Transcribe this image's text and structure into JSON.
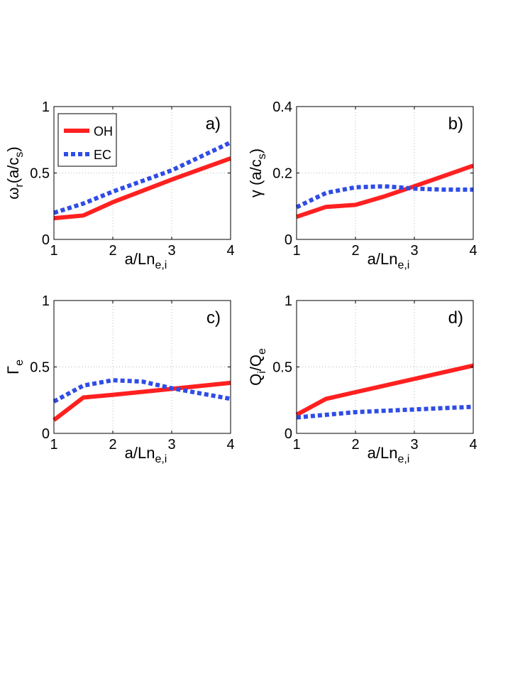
{
  "colors": {
    "OH": "#ff2020",
    "EC": "#2f4ce6"
  },
  "legend": {
    "entries": [
      "OH",
      "EC"
    ]
  },
  "chart_data": [
    {
      "type": "line",
      "panel_label": "a)",
      "xlabel_main": "a/Ln",
      "xlabel_sub": "e,i",
      "ylabel_main": "ω",
      "ylabel_sub1": "r",
      "ylabel_mid": "(a/c",
      "ylabel_sub2": "s",
      "ylabel_end": ")",
      "xlim": [
        1,
        4
      ],
      "ylim": [
        0,
        1
      ],
      "xticks": [
        1,
        2,
        3,
        4
      ],
      "xtick_labels": [
        "1",
        "2",
        "3",
        "4"
      ],
      "yticks": [
        0,
        0.5,
        1
      ],
      "ytick_labels": [
        "0",
        "0.5",
        "1"
      ],
      "grid": true,
      "legend": "top-left",
      "series": [
        {
          "name": "OH",
          "style": "solid",
          "x": [
            1,
            1.5,
            2,
            3,
            4
          ],
          "y": [
            0.16,
            0.18,
            0.28,
            0.45,
            0.61
          ]
        },
        {
          "name": "EC",
          "style": "dotted",
          "x": [
            1,
            1.5,
            2,
            3,
            4
          ],
          "y": [
            0.2,
            0.27,
            0.36,
            0.52,
            0.73
          ]
        }
      ]
    },
    {
      "type": "line",
      "panel_label": "b)",
      "xlabel_main": "a/Ln",
      "xlabel_sub": "e,i",
      "ylabel_main": "γ (a/c",
      "ylabel_sub1": "s",
      "ylabel_mid": ")",
      "ylabel_sub2": "",
      "ylabel_end": "",
      "xlim": [
        1,
        4
      ],
      "ylim": [
        0,
        0.4
      ],
      "xticks": [
        1,
        2,
        3,
        4
      ],
      "xtick_labels": [
        "1",
        "2",
        "3",
        "4"
      ],
      "yticks": [
        0,
        0.2,
        0.4
      ],
      "ytick_labels": [
        "0",
        "0.2",
        "0.4"
      ],
      "grid": true,
      "series": [
        {
          "name": "OH",
          "style": "solid",
          "x": [
            1,
            1.5,
            2,
            2.5,
            3,
            4
          ],
          "y": [
            0.068,
            0.098,
            0.104,
            0.13,
            0.16,
            0.222
          ]
        },
        {
          "name": "EC",
          "style": "dotted",
          "x": [
            1,
            1.5,
            2,
            2.5,
            3,
            3.5,
            4
          ],
          "y": [
            0.097,
            0.14,
            0.157,
            0.16,
            0.153,
            0.15,
            0.15
          ]
        }
      ]
    },
    {
      "type": "line",
      "panel_label": "c)",
      "xlabel_main": "a/Ln",
      "xlabel_sub": "e,i",
      "ylabel_main": "Γ",
      "ylabel_sub1": "e",
      "ylabel_mid": "",
      "ylabel_sub2": "",
      "ylabel_end": "",
      "xlim": [
        1,
        4
      ],
      "ylim": [
        0,
        1
      ],
      "xticks": [
        1,
        2,
        3,
        4
      ],
      "xtick_labels": [
        "1",
        "2",
        "3",
        "4"
      ],
      "yticks": [
        0,
        0.5,
        1
      ],
      "ytick_labels": [
        "0",
        "0.5",
        "1"
      ],
      "grid": true,
      "series": [
        {
          "name": "OH",
          "style": "solid",
          "x": [
            1,
            1.5,
            2,
            3,
            4
          ],
          "y": [
            0.1,
            0.27,
            0.29,
            0.335,
            0.38
          ]
        },
        {
          "name": "EC",
          "style": "dotted",
          "x": [
            1,
            1.5,
            2,
            2.5,
            3,
            3.5,
            4
          ],
          "y": [
            0.24,
            0.36,
            0.4,
            0.39,
            0.34,
            0.3,
            0.26
          ]
        }
      ]
    },
    {
      "type": "line",
      "panel_label": "d)",
      "xlabel_main": "a/Ln",
      "xlabel_sub": "e,i",
      "ylabel_main": "Q",
      "ylabel_sub1": "i",
      "ylabel_mid": "/Q",
      "ylabel_sub2": "e",
      "ylabel_end": "",
      "xlim": [
        1,
        4
      ],
      "ylim": [
        0,
        1
      ],
      "xticks": [
        1,
        2,
        3,
        4
      ],
      "xtick_labels": [
        "1",
        "2",
        "3",
        "4"
      ],
      "yticks": [
        0,
        0.5,
        1
      ],
      "ytick_labels": [
        "0",
        "0.5",
        "1"
      ],
      "grid": true,
      "series": [
        {
          "name": "OH",
          "style": "solid",
          "x": [
            1,
            1.5,
            2,
            3,
            4
          ],
          "y": [
            0.14,
            0.26,
            0.31,
            0.41,
            0.51
          ]
        },
        {
          "name": "EC",
          "style": "dotted",
          "x": [
            1,
            2,
            3,
            4
          ],
          "y": [
            0.12,
            0.16,
            0.18,
            0.2
          ]
        }
      ]
    }
  ]
}
